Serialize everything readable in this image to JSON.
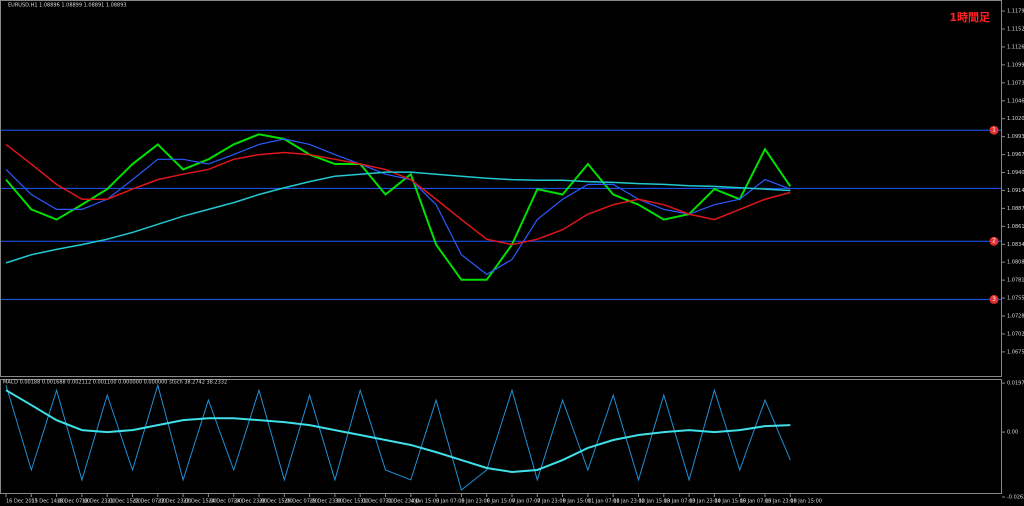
{
  "chart_data": [
    {
      "type": "line",
      "title": "EURUSD,H1  1.08896 1.08899 1.08891 1.08893",
      "annotation": "1時間足",
      "categories": [
        "16 Dec 2015",
        "17 Dec 14:00",
        "18 Dec 07:00",
        "18 Dec 23:00",
        "21 Dec 15:00",
        "22 Dec 07:00",
        "22 Dec 23:00",
        "23 Dec 15:00",
        "24 Dec 07:00",
        "24 Dec 23:00",
        "28 Dec 15:00",
        "29 Dec 07:00",
        "29 Dec 23:00",
        "30 Dec 15:00",
        "31 Dec 07:00",
        "31 Dec 23:00",
        "4 Jan 15:00",
        "5 Jan 07:00",
        "5 Jan 23:00",
        "6 Jan 15:00",
        "7 Jan 07:00",
        "7 Jan 23:00",
        "8 Jan 15:00",
        "11 Jan 07:00",
        "11 Jan 23:00",
        "12 Jan 15:00",
        "13 Jan 07:00",
        "13 Jan 23:00",
        "14 Jan 15:00",
        "15 Jan 07:00",
        "15 Jan 23:00",
        "18 Jan 15:00"
      ],
      "series": [
        {
          "color": "#00e000",
          "values": [
            1.093,
            1.0886,
            1.0871,
            1.0893,
            1.0916,
            1.0953,
            1.0982,
            1.0945,
            1.096,
            1.0982,
            1.0997,
            1.099,
            1.0967,
            1.0953,
            1.0953,
            1.0908,
            1.0938,
            1.0834,
            1.0782,
            1.0782,
            1.0834,
            1.0916,
            1.0908,
            1.0953,
            1.0908,
            1.0893,
            1.0871,
            1.0879,
            1.0916,
            1.0901,
            1.0975,
            1.092
          ]
        },
        {
          "color": "#2a5cff",
          "values": [
            1.0945,
            1.0908,
            1.0886,
            1.0886,
            1.0901,
            1.093,
            1.096,
            1.096,
            1.0953,
            1.0967,
            1.0982,
            1.099,
            1.0982,
            1.0967,
            1.0953,
            1.0938,
            1.093,
            1.0893,
            1.0819,
            1.079,
            1.0812,
            1.0871,
            1.0901,
            1.0923,
            1.0923,
            1.0901,
            1.0886,
            1.0879,
            1.0893,
            1.0901,
            1.093,
            1.0916
          ]
        },
        {
          "color": "#e0161b",
          "values": [
            1.0982,
            1.0953,
            1.0923,
            1.0901,
            1.0901,
            1.0916,
            1.093,
            1.0938,
            1.0945,
            1.096,
            1.0967,
            1.097,
            1.0967,
            1.096,
            1.0953,
            1.0945,
            1.093,
            1.0901,
            1.0871,
            1.0842,
            1.0834,
            1.0842,
            1.0856,
            1.0879,
            1.0893,
            1.0901,
            1.0893,
            1.0879,
            1.0871,
            1.0886,
            1.0901,
            1.0911
          ]
        },
        {
          "color": "#20c8d0",
          "values": [
            1.0807,
            1.0819,
            1.0827,
            1.0834,
            1.0842,
            1.0852,
            1.0864,
            1.0876,
            1.0886,
            1.0896,
            1.0908,
            1.0918,
            1.0927,
            1.0935,
            1.0938,
            1.0941,
            1.0941,
            1.0938,
            1.0935,
            1.0932,
            1.093,
            1.0929,
            1.0929,
            1.0927,
            1.0926,
            1.0924,
            1.0923,
            1.0921,
            1.092,
            1.0918,
            1.0916,
            1.0914
          ]
        }
      ],
      "levels": [
        1.1003,
        1.0917,
        1.0839,
        1.0753
      ],
      "level_labels": [
        "1",
        "2",
        "3"
      ],
      "level_label_levels": [
        1.1003,
        1.0839,
        1.0753
      ],
      "ylim": [
        1.0665,
        1.1185
      ],
      "yticks": [
        {
          "value": 1.1179,
          "label": "1.11790"
        },
        1.11525,
        {
          "value": 1.1126,
          "label": "1.11260"
        },
        1.10995,
        {
          "value": 1.1073,
          "label": "1.10730"
        },
        1.10465,
        {
          "value": 1.102,
          "label": "1.10200"
        },
        1.09935,
        {
          "value": 1.0967,
          "label": "1.09670"
        },
        1.09405,
        {
          "value": 1.0914,
          "label": "1.09140"
        },
        1.08875,
        {
          "value": 1.0861,
          "label": "1.08610"
        },
        1.08345,
        {
          "value": 1.0808,
          "label": "1.08080"
        },
        1.07815,
        {
          "value": 1.0755,
          "label": "1.07550"
        },
        1.07285,
        {
          "value": 1.0702,
          "label": "1.07020"
        },
        1.06755
      ]
    },
    {
      "type": "line",
      "title": "MACD 0.00188 0.001688 0.002112 0.001100 0.000000 0.000000 stoch 38.2742 38.2332",
      "series": [
        {
          "color": "#1e90d8",
          "values": [
            0.0189,
            -0.0153,
            0.0169,
            -0.0193,
            0.0149,
            -0.0153,
            0.0189,
            -0.0193,
            0.0129,
            -0.0153,
            0.0169,
            -0.0193,
            0.0149,
            -0.0193,
            0.0169,
            -0.0153,
            -0.0193,
            0.0129,
            -0.0234,
            -0.0153,
            0.0169,
            -0.0193,
            0.0129,
            -0.0153,
            0.0149,
            -0.0193,
            0.0149,
            -0.0193,
            0.0169,
            -0.0153,
            0.0129,
            -0.0113
          ]
        },
        {
          "color": "#40e0e8",
          "values": [
            0.0169,
            0.0109,
            0.0048,
            0.0008,
            0,
            0.0008,
            0.0028,
            0.0048,
            0.0056,
            0.0056,
            0.0048,
            0.004,
            0.0028,
            0.0008,
            -0.0012,
            -0.0032,
            -0.0052,
            -0.0081,
            -0.0113,
            -0.0145,
            -0.0161,
            -0.0153,
            -0.0113,
            -0.0064,
            -0.0032,
            -0.0012,
            0,
            0.0008,
            0,
            0.0008,
            0.0024,
            0.0028
          ]
        }
      ],
      "ylim": [
        -0.0262,
        0.0198
      ],
      "yticks": [
        0.01976,
        {
          "value": 0,
          "label": "0.00"
        },
        {
          "value": -0.0262,
          "label": "-0.02620"
        }
      ]
    }
  ]
}
